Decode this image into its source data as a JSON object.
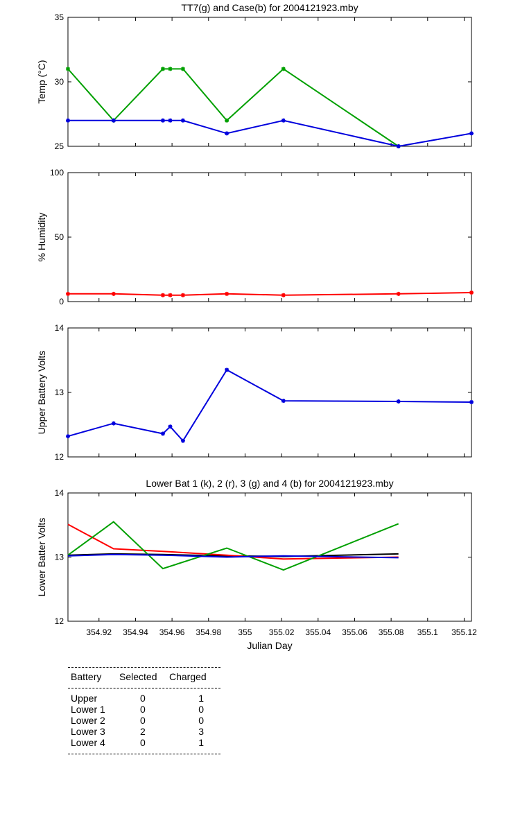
{
  "chart_data": [
    {
      "type": "line",
      "title": "TT7(g) and Case(b) for 2004121923.mby",
      "xlabel": "",
      "ylabel": "Temp  (°C)",
      "xlim": [
        354.903,
        355.124
      ],
      "ylim": [
        25,
        35
      ],
      "yticks": [
        25,
        30,
        35
      ],
      "grid": false,
      "markers": true,
      "series": [
        {
          "color": "#00a000",
          "x": [
            354.903,
            354.928,
            354.955,
            354.959,
            354.966,
            354.99,
            355.021,
            355.084
          ],
          "values": [
            31,
            27,
            31,
            31,
            31,
            27,
            31,
            25
          ]
        },
        {
          "color": "#0000dd",
          "x": [
            354.903,
            354.928,
            354.955,
            354.959,
            354.966,
            354.99,
            355.021,
            355.084,
            355.124
          ],
          "values": [
            27,
            27,
            27,
            27,
            27,
            26,
            27,
            25,
            26
          ]
        }
      ]
    },
    {
      "type": "line",
      "title": "",
      "xlabel": "",
      "ylabel": "% Humidity",
      "xlim": [
        354.903,
        355.124
      ],
      "ylim": [
        0,
        100
      ],
      "yticks": [
        0,
        50,
        100
      ],
      "grid": false,
      "markers": true,
      "series": [
        {
          "color": "#ff0000",
          "x": [
            354.903,
            354.928,
            354.955,
            354.959,
            354.966,
            354.99,
            355.021,
            355.084,
            355.124
          ],
          "values": [
            6,
            6,
            5,
            5,
            5,
            6,
            5,
            6,
            7
          ]
        }
      ]
    },
    {
      "type": "line",
      "title": "",
      "xlabel": "",
      "ylabel": "Upper Battery Volts",
      "xlim": [
        354.903,
        355.124
      ],
      "ylim": [
        12,
        14
      ],
      "yticks": [
        12,
        13,
        14
      ],
      "grid": false,
      "markers": true,
      "series": [
        {
          "color": "#0000dd",
          "x": [
            354.903,
            354.928,
            354.955,
            354.959,
            354.966,
            354.99,
            355.021,
            355.084,
            355.124
          ],
          "values": [
            12.32,
            12.52,
            12.36,
            12.47,
            12.25,
            13.35,
            12.87,
            12.86,
            12.85
          ]
        }
      ]
    },
    {
      "type": "line",
      "title": "Lower Bat 1 (k), 2 (r), 3 (g) and 4 (b) for 2004121923.mby",
      "xlabel": "Julian Day",
      "ylabel": "Lower Batter Volts",
      "xlim": [
        354.903,
        355.124
      ],
      "ylim": [
        12,
        14
      ],
      "yticks": [
        12,
        13,
        14
      ],
      "xticks": [
        "354.92",
        "354.94",
        "354.96",
        "354.98",
        "355",
        "355.02",
        "355.04",
        "355.06",
        "355.08",
        "355.1",
        "355.12"
      ],
      "grid": false,
      "markers": false,
      "series": [
        {
          "color": "#000000",
          "x": [
            354.903,
            354.928,
            354.955,
            354.99,
            355.021,
            355.084
          ],
          "values": [
            13.03,
            13.05,
            13.04,
            13.02,
            13.01,
            13.05
          ]
        },
        {
          "color": "#ff0000",
          "x": [
            354.903,
            354.928,
            354.955,
            354.99,
            355.021,
            355.084
          ],
          "values": [
            13.51,
            13.13,
            13.09,
            13.03,
            12.97,
            13.0
          ]
        },
        {
          "color": "#00a000",
          "x": [
            354.903,
            354.928,
            354.955,
            354.99,
            355.021,
            355.084
          ],
          "values": [
            13.03,
            13.55,
            12.82,
            13.14,
            12.8,
            13.52
          ]
        },
        {
          "color": "#0000dd",
          "x": [
            354.903,
            354.928,
            354.955,
            354.99,
            355.021,
            355.084
          ],
          "values": [
            13.02,
            13.04,
            13.03,
            13.0,
            13.02,
            12.99
          ]
        }
      ]
    }
  ],
  "battery_table": {
    "headers": [
      "Battery",
      "Selected",
      "Charged"
    ],
    "rows": [
      {
        "battery": "Upper",
        "selected": "0",
        "charged": "1"
      },
      {
        "battery": "Lower 1",
        "selected": "0",
        "charged": "0"
      },
      {
        "battery": "Lower 2",
        "selected": "0",
        "charged": "0"
      },
      {
        "battery": "Lower 3",
        "selected": "2",
        "charged": "3"
      },
      {
        "battery": "Lower 4",
        "selected": "0",
        "charged": "1"
      }
    ]
  }
}
